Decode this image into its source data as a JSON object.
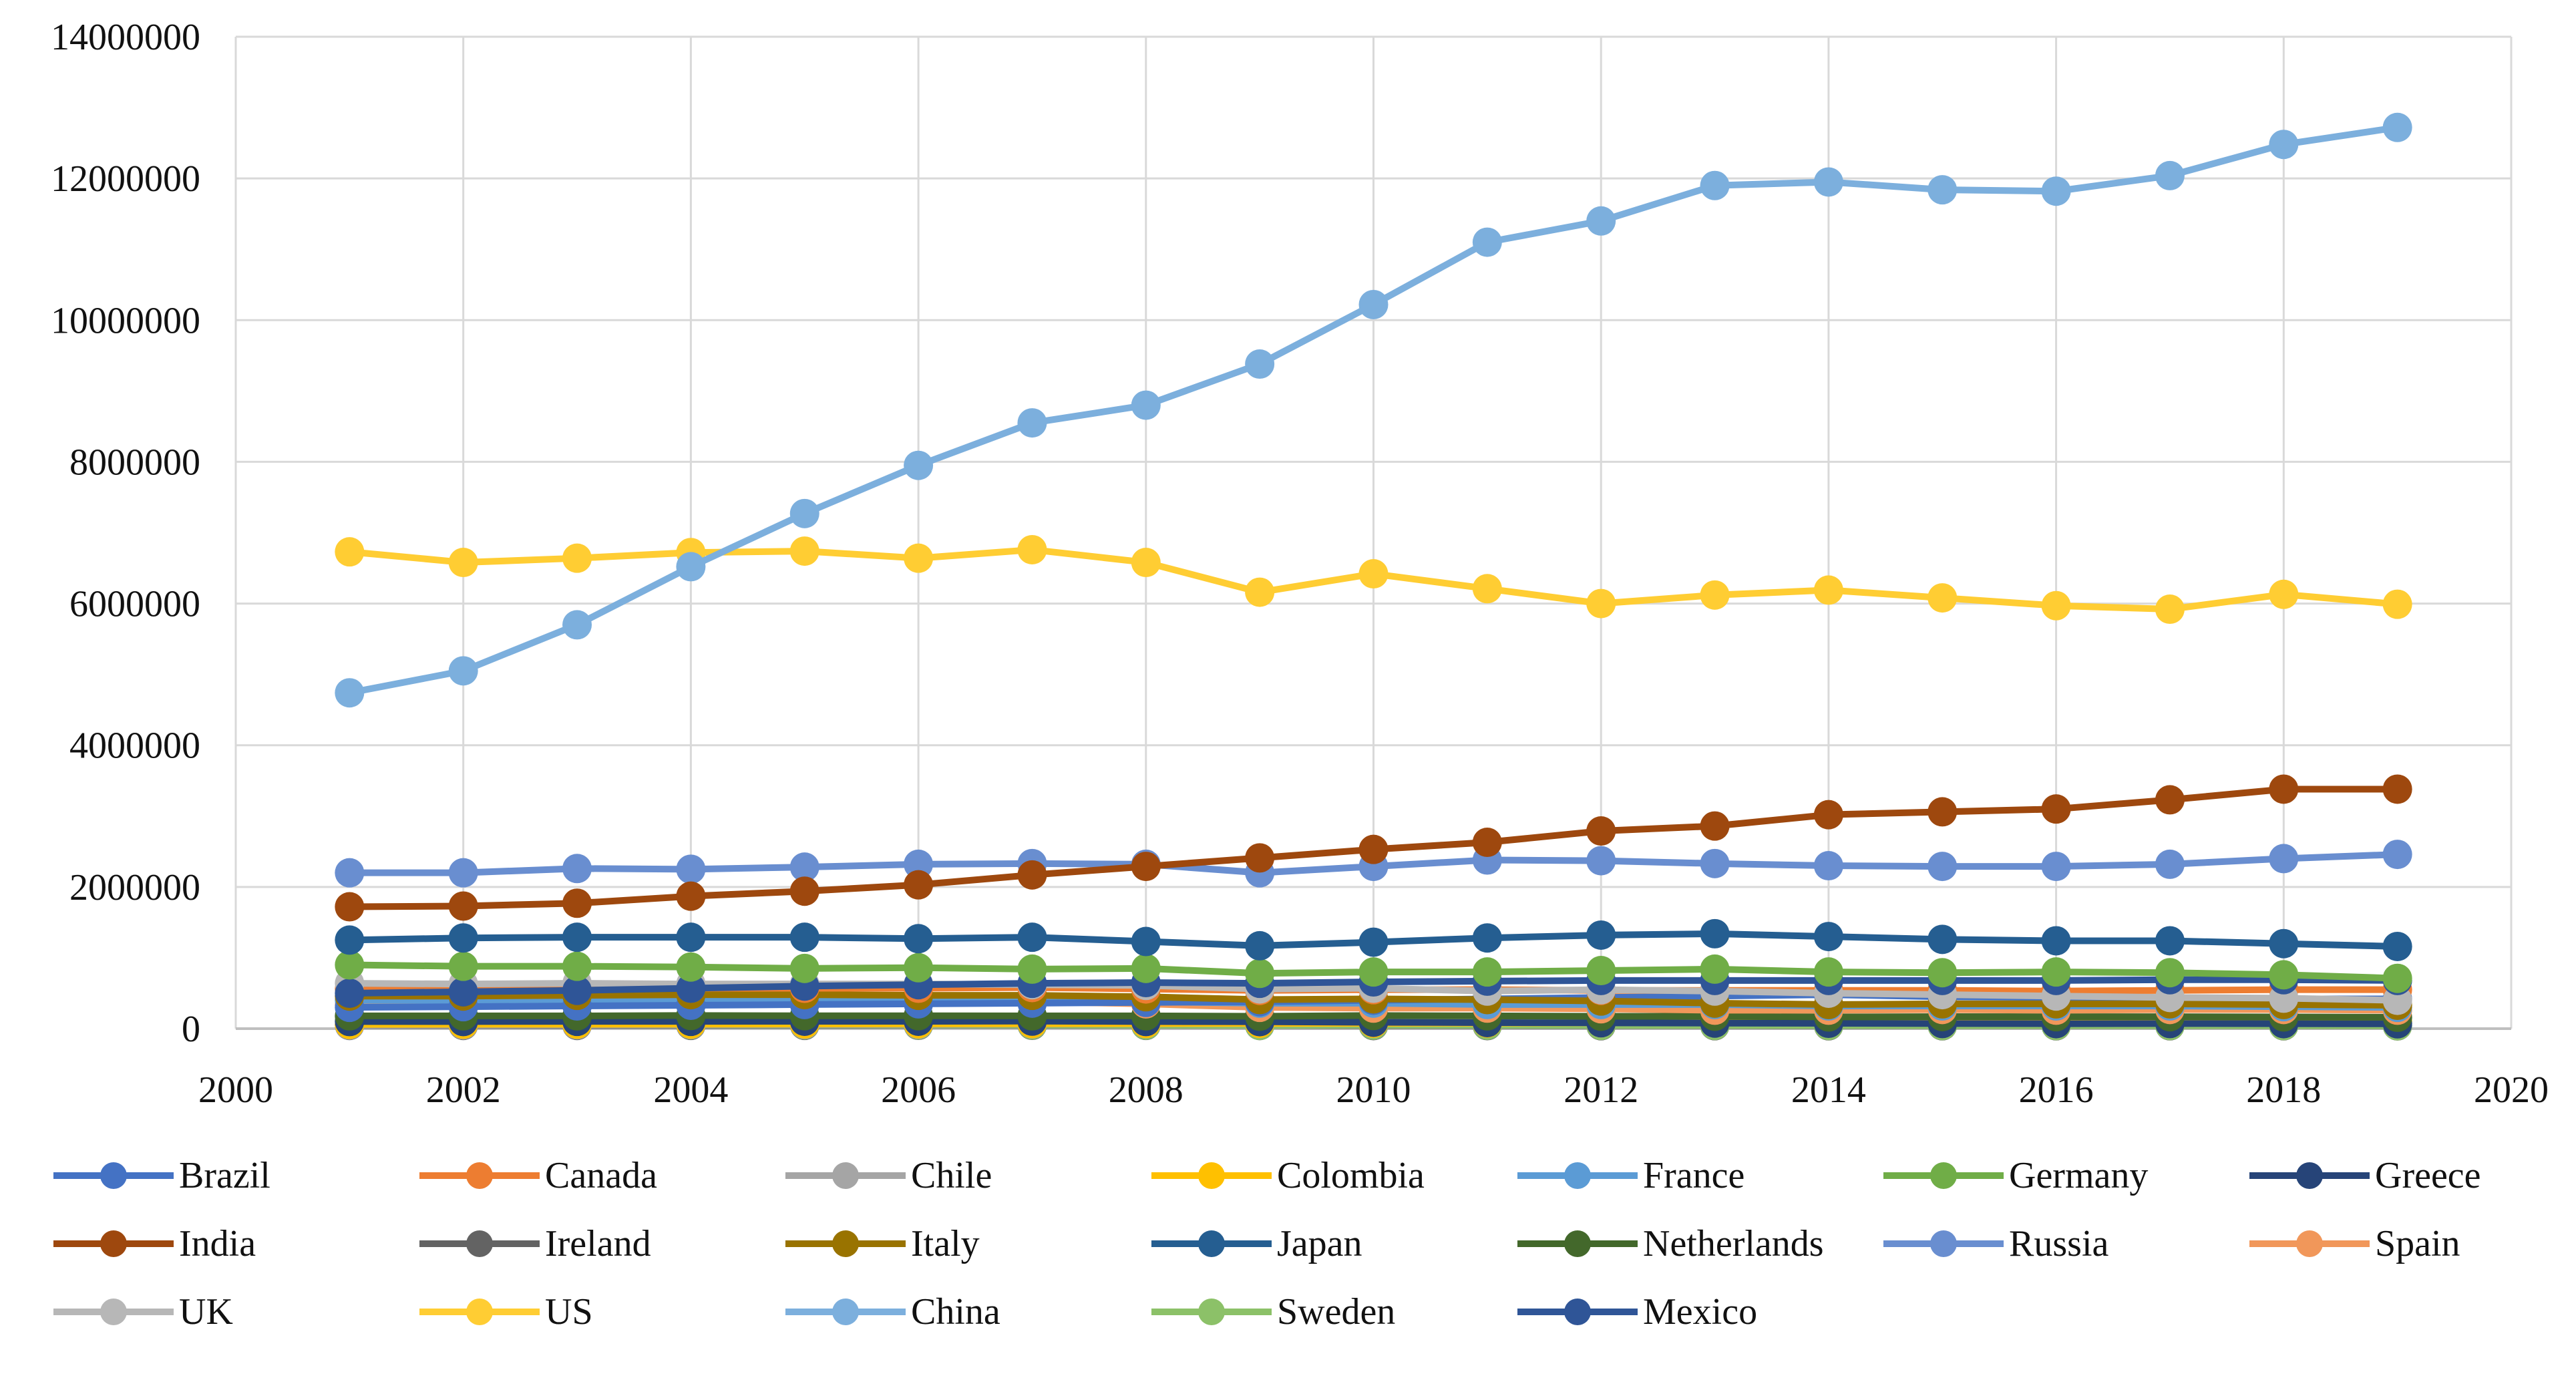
{
  "chart_data": {
    "type": "line",
    "title": "",
    "xlabel": "",
    "ylabel": "",
    "xlim": [
      2000,
      2020
    ],
    "ylim": [
      0,
      14000000
    ],
    "x_ticks": [
      "2000",
      "2002",
      "2004",
      "2006",
      "2008",
      "2010",
      "2012",
      "2014",
      "2016",
      "2018",
      "2020"
    ],
    "y_ticks": [
      "0",
      "2000000",
      "4000000",
      "6000000",
      "8000000",
      "10000000",
      "12000000",
      "14000000"
    ],
    "grid": true,
    "legend_position": "bottom",
    "x": [
      2001,
      2002,
      2003,
      2004,
      2005,
      2006,
      2007,
      2008,
      2009,
      2010,
      2011,
      2012,
      2013,
      2014,
      2015,
      2016,
      2017,
      2018,
      2019
    ],
    "series": [
      {
        "name": "Brazil",
        "color": "#4472C4",
        "values": [
          300000,
          310000,
          320000,
          330000,
          340000,
          350000,
          360000,
          370000,
          380000,
          400000,
          420000,
          440000,
          460000,
          480000,
          450000,
          440000,
          430000,
          420000,
          420000
        ]
      },
      {
        "name": "Canada",
        "color": "#ED7D31",
        "values": [
          560000,
          560000,
          560000,
          570000,
          570000,
          570000,
          580000,
          560000,
          540000,
          550000,
          550000,
          540000,
          540000,
          540000,
          540000,
          530000,
          540000,
          550000,
          550000
        ]
      },
      {
        "name": "Chile",
        "color": "#A5A5A5",
        "values": [
          50000,
          52000,
          54000,
          56000,
          58000,
          60000,
          65000,
          70000,
          72000,
          75000,
          80000,
          82000,
          85000,
          88000,
          90000,
          92000,
          90000,
          88000,
          85000
        ]
      },
      {
        "name": "Colombia",
        "color": "#FFC000",
        "values": [
          60000,
          62000,
          62000,
          64000,
          66000,
          68000,
          70000,
          72000,
          74000,
          76000,
          78000,
          82000,
          86000,
          90000,
          95000,
          98000,
          100000,
          102000,
          102000
        ]
      },
      {
        "name": "France",
        "color": "#5B9BD5",
        "values": [
          400000,
          400000,
          410000,
          410000,
          410000,
          400000,
          390000,
          380000,
          360000,
          360000,
          340000,
          340000,
          340000,
          320000,
          320000,
          320000,
          320000,
          310000,
          300000
        ]
      },
      {
        "name": "Germany",
        "color": "#70AD47",
        "values": [
          900000,
          880000,
          880000,
          870000,
          850000,
          860000,
          840000,
          850000,
          780000,
          800000,
          800000,
          820000,
          840000,
          800000,
          790000,
          800000,
          790000,
          760000,
          710000
        ]
      },
      {
        "name": "Greece",
        "color": "#264478",
        "values": [
          100000,
          100000,
          102000,
          102000,
          104000,
          104000,
          106000,
          100000,
          98000,
          90000,
          85000,
          82000,
          78000,
          75000,
          72000,
          70000,
          72000,
          70000,
          68000
        ]
      },
      {
        "name": "India",
        "color": "#9E480E",
        "values": [
          1720000,
          1730000,
          1770000,
          1870000,
          1940000,
          2030000,
          2170000,
          2290000,
          2410000,
          2530000,
          2630000,
          2790000,
          2860000,
          3020000,
          3060000,
          3100000,
          3230000,
          3380000,
          3380000
        ]
      },
      {
        "name": "Ireland",
        "color": "#636363",
        "values": [
          45000,
          45000,
          45000,
          46000,
          46000,
          47000,
          47000,
          46000,
          44000,
          43000,
          42000,
          41000,
          41000,
          40000,
          40000,
          40000,
          40000,
          40000,
          39000
        ]
      },
      {
        "name": "Italy",
        "color": "#997300",
        "values": [
          460000,
          460000,
          470000,
          480000,
          480000,
          470000,
          470000,
          450000,
          410000,
          420000,
          410000,
          390000,
          360000,
          340000,
          350000,
          350000,
          350000,
          340000,
          330000
        ]
      },
      {
        "name": "Japan",
        "color": "#255E91",
        "values": [
          1250000,
          1280000,
          1290000,
          1290000,
          1290000,
          1270000,
          1290000,
          1230000,
          1170000,
          1220000,
          1280000,
          1320000,
          1340000,
          1300000,
          1260000,
          1240000,
          1240000,
          1200000,
          1160000
        ]
      },
      {
        "name": "Netherlands",
        "color": "#43682B",
        "values": [
          180000,
          180000,
          180000,
          185000,
          182000,
          182000,
          180000,
          180000,
          175000,
          185000,
          180000,
          175000,
          175000,
          165000,
          170000,
          168000,
          168000,
          165000,
          160000
        ]
      },
      {
        "name": "Russia",
        "color": "#698ED0",
        "values": [
          2200000,
          2200000,
          2260000,
          2250000,
          2280000,
          2320000,
          2330000,
          2320000,
          2200000,
          2290000,
          2380000,
          2370000,
          2330000,
          2300000,
          2290000,
          2290000,
          2320000,
          2400000,
          2460000
        ]
      },
      {
        "name": "Spain",
        "color": "#F1975A",
        "values": [
          330000,
          330000,
          340000,
          350000,
          370000,
          370000,
          380000,
          350000,
          300000,
          290000,
          290000,
          280000,
          260000,
          260000,
          270000,
          260000,
          270000,
          270000,
          260000
        ]
      },
      {
        "name": "UK",
        "color": "#B7B7B7",
        "values": [
          640000,
          630000,
          640000,
          630000,
          630000,
          630000,
          620000,
          610000,
          560000,
          570000,
          530000,
          550000,
          530000,
          500000,
          480000,
          460000,
          440000,
          430000,
          400000
        ]
      },
      {
        "name": "US",
        "color": "#FFCD33",
        "values": [
          6730000,
          6580000,
          6640000,
          6720000,
          6740000,
          6640000,
          6760000,
          6580000,
          6160000,
          6420000,
          6210000,
          6000000,
          6120000,
          6190000,
          6080000,
          5970000,
          5920000,
          6130000,
          5990000
        ]
      },
      {
        "name": "China",
        "color": "#7CAFDD",
        "values": [
          4740000,
          5050000,
          5700000,
          6520000,
          7270000,
          7950000,
          8550000,
          8800000,
          9380000,
          10220000,
          11100000,
          11400000,
          11900000,
          11950000,
          11840000,
          11820000,
          12040000,
          12480000,
          12720000
        ]
      },
      {
        "name": "Sweden",
        "color": "#8CC168",
        "values": [
          55000,
          55000,
          55000,
          54000,
          53000,
          52000,
          52000,
          50000,
          46000,
          50000,
          48000,
          46000,
          45000,
          44000,
          43000,
          43000,
          43000,
          42000,
          41000
        ]
      },
      {
        "name": "Mexico",
        "color": "#2F5597",
        "values": [
          500000,
          520000,
          540000,
          570000,
          600000,
          620000,
          640000,
          650000,
          640000,
          660000,
          670000,
          680000,
          680000,
          680000,
          680000,
          680000,
          690000,
          690000,
          680000
        ]
      }
    ]
  }
}
